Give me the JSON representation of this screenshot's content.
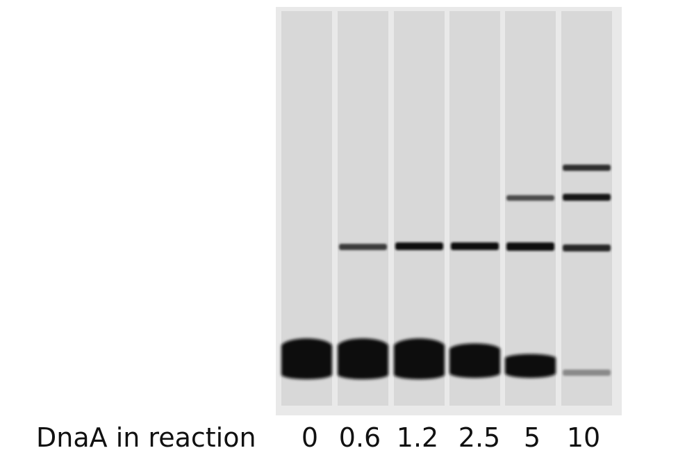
{
  "axis_label": "DnaA in reaction",
  "lanes": [
    {
      "label": "0"
    },
    {
      "label": "0.6"
    },
    {
      "label": "1.2"
    },
    {
      "label": "2.5"
    },
    {
      "label": "5"
    },
    {
      "label": "10"
    }
  ],
  "colors": {
    "gel_background": "#e9e9e9",
    "lane_fill": "#d8d8d8",
    "band": "#0a0a0a"
  }
}
